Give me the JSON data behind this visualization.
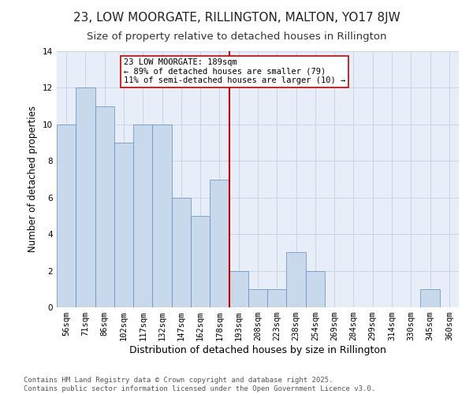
{
  "title": "23, LOW MOORGATE, RILLINGTON, MALTON, YO17 8JW",
  "subtitle": "Size of property relative to detached houses in Rillington",
  "xlabel": "Distribution of detached houses by size in Rillington",
  "ylabel": "Number of detached properties",
  "bar_labels": [
    "56sqm",
    "71sqm",
    "86sqm",
    "102sqm",
    "117sqm",
    "132sqm",
    "147sqm",
    "162sqm",
    "178sqm",
    "193sqm",
    "208sqm",
    "223sqm",
    "238sqm",
    "254sqm",
    "269sqm",
    "284sqm",
    "299sqm",
    "314sqm",
    "330sqm",
    "345sqm",
    "360sqm"
  ],
  "bar_values": [
    10,
    12,
    11,
    9,
    10,
    10,
    6,
    5,
    7,
    2,
    1,
    1,
    3,
    2,
    0,
    0,
    0,
    0,
    0,
    1,
    0
  ],
  "bar_color": "#c9d9ec",
  "bar_edge_color": "#5b8abf",
  "annotation_text": "23 LOW MOORGATE: 189sqm\n← 89% of detached houses are smaller (79)\n11% of semi-detached houses are larger (10) →",
  "annotation_box_color": "#ffffff",
  "annotation_box_edge_color": "#cc0000",
  "vline_color": "#cc0000",
  "vline_x_index": 8.5,
  "ylim": [
    0,
    14
  ],
  "yticks": [
    0,
    2,
    4,
    6,
    8,
    10,
    12,
    14
  ],
  "grid_color": "#c8d4e8",
  "background_color": "#e8eef8",
  "footer": "Contains HM Land Registry data © Crown copyright and database right 2025.\nContains public sector information licensed under the Open Government Licence v3.0.",
  "title_fontsize": 11,
  "subtitle_fontsize": 9.5,
  "xlabel_fontsize": 9,
  "ylabel_fontsize": 8.5,
  "tick_fontsize": 7.5,
  "annotation_fontsize": 7.5,
  "footer_fontsize": 6.5
}
